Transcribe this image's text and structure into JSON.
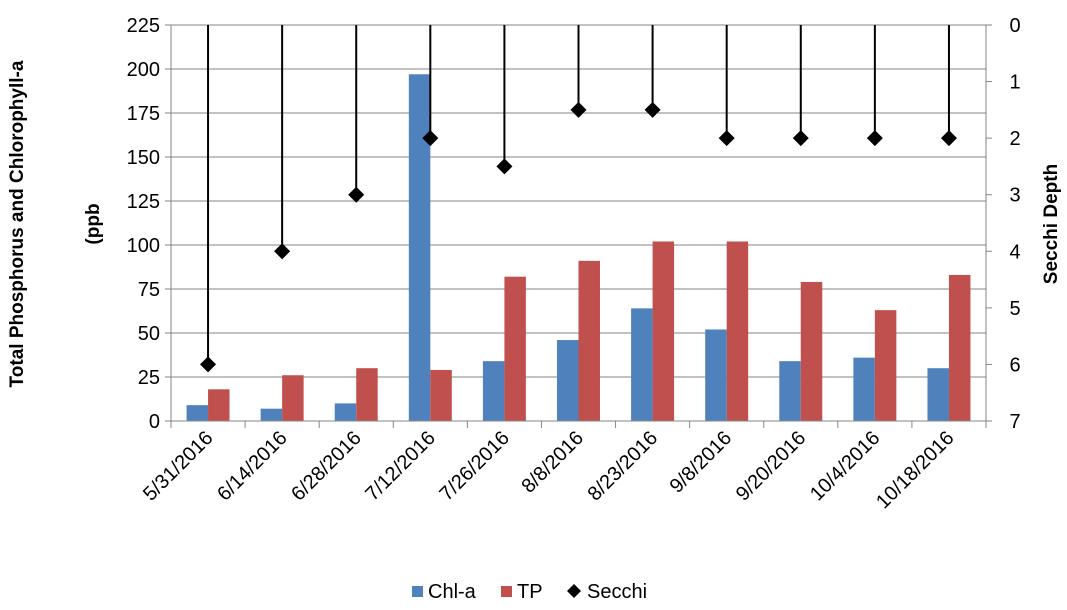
{
  "chart_data": {
    "type": "bar",
    "categories": [
      "5/31/2016",
      "6/14/2016",
      "6/28/2016",
      "7/12/2016",
      "7/26/2016",
      "8/8/2016",
      "8/23/2016",
      "9/8/2016",
      "9/20/2016",
      "10/4/2016",
      "10/18/2016"
    ],
    "series": [
      {
        "name": "Chl-a",
        "type": "bar",
        "axis": "left",
        "color": "#4f81bd",
        "values": [
          9,
          7,
          10,
          197,
          34,
          46,
          64,
          52,
          34,
          36,
          30
        ]
      },
      {
        "name": "TP",
        "type": "bar",
        "axis": "left",
        "color": "#c0504d",
        "values": [
          18,
          26,
          30,
          29,
          82,
          91,
          102,
          102,
          79,
          63,
          83
        ]
      },
      {
        "name": "Secchi",
        "type": "line-markers",
        "marker": "diamond",
        "axis": "right",
        "color": "#000000",
        "drop_lines_to": 0,
        "values": [
          6.0,
          4.0,
          3.0,
          2.0,
          2.5,
          1.5,
          1.5,
          2.0,
          2.0,
          2.0,
          2.0
        ]
      }
    ],
    "ylabel": "Total Phosphorus and Chlorophyll-a (ppb",
    "ylabel_lines": [
      "Total Phosphorus and Chlorophyll-a",
      "(ppb"
    ],
    "y2label": "Secchi Depth",
    "ylim": [
      0,
      225
    ],
    "yticks": [
      "0",
      "25",
      "50",
      "75",
      "100",
      "125",
      "150",
      "175",
      "200",
      "225"
    ],
    "y2lim": [
      0,
      7
    ],
    "y2_inverted": true,
    "y2ticks": [
      "0",
      "1",
      "2",
      "3",
      "4",
      "5",
      "6",
      "7"
    ],
    "grid": true,
    "legend_position": "bottom"
  }
}
